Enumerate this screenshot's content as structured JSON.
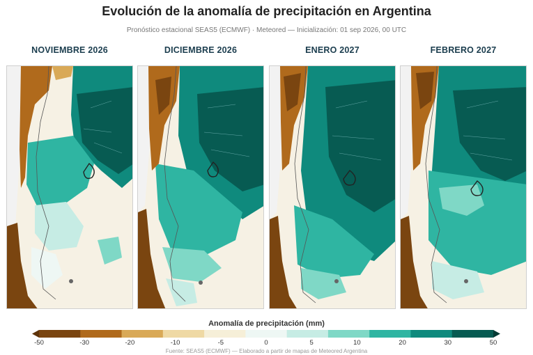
{
  "title": "Evolución de la anomalía de precipitación en Argentina",
  "subtitle": "Pronóstico estacional SEAS5 (ECMWF) · Meteored — Inicialización: 01 sep 2026, 00 UTC",
  "panels": [
    {
      "label": "NOVIEMBRE 2026"
    },
    {
      "label": "DICIEMBRE 2026"
    },
    {
      "label": "ENERO 2027"
    },
    {
      "label": "FEBRERO 2027"
    }
  ],
  "legend": {
    "title": "Anomalía de precipitación (mm)",
    "ticks": [
      "-50",
      "-30",
      "-20",
      "-10",
      "-5",
      "0",
      "5",
      "10",
      "20",
      "30",
      "50"
    ],
    "colors": [
      "#7a4510",
      "#b06a1c",
      "#d9a957",
      "#efd9a4",
      "#f6efd8",
      "#eef7f4",
      "#c6ece4",
      "#7fd8c6",
      "#2fb5a2",
      "#0f8a7d",
      "#075b52"
    ]
  },
  "source": "Fuente: SEAS5 (ECMWF) — Elaborado a partir de mapas de Meteored Argentina"
}
